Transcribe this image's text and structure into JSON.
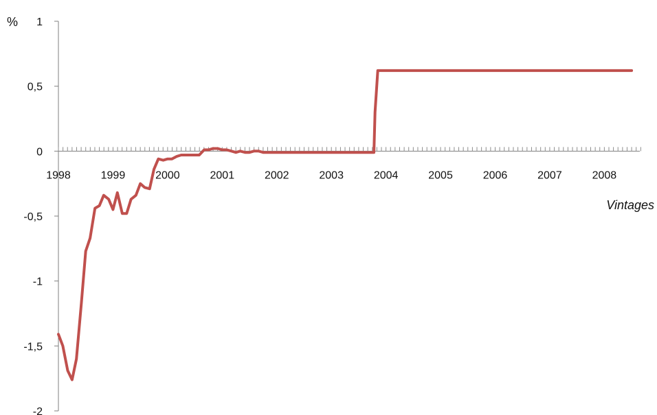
{
  "chart_data": {
    "type": "line",
    "unit_label": "%",
    "xlabel": "Vintages",
    "ylabel": "",
    "title": "",
    "x_tick_labels": [
      "1998",
      "1999",
      "2000",
      "2001",
      "2002",
      "2003",
      "2004",
      "2005",
      "2006",
      "2007",
      "2008"
    ],
    "y_tick_labels": [
      "1",
      "0,5",
      "0",
      "-0,5",
      "-1",
      "-1,5",
      "-2"
    ],
    "y_tick_values": [
      1,
      0.5,
      0,
      -0.5,
      -1,
      -1.5,
      -2
    ],
    "ylim": [
      -2,
      1
    ],
    "xlim": [
      1998.0,
      2008.65
    ],
    "grid": false,
    "legend": "none",
    "series": [
      {
        "color": "#C0504D",
        "x": [
          1998.0,
          1998.08,
          1998.17,
          1998.25,
          1998.33,
          1998.42,
          1998.5,
          1998.58,
          1998.67,
          1998.75,
          1998.83,
          1998.92,
          1999.0,
          1999.08,
          1999.17,
          1999.25,
          1999.33,
          1999.42,
          1999.5,
          1999.58,
          1999.67,
          1999.75,
          1999.83,
          1999.92,
          2000.0,
          2000.08,
          2000.17,
          2000.25,
          2000.33,
          2000.42,
          2000.5,
          2000.58,
          2000.67,
          2000.75,
          2000.83,
          2000.92,
          2001.0,
          2001.08,
          2001.17,
          2001.25,
          2001.33,
          2001.42,
          2001.5,
          2001.58,
          2001.67,
          2001.75,
          2001.83,
          2001.92,
          2002.0,
          2002.5,
          2002.67,
          2002.75,
          2003.0,
          2003.5,
          2003.78,
          2003.8,
          2003.85,
          2004.0,
          2005.0,
          2006.0,
          2007.0,
          2008.0,
          2008.5
        ],
        "y": [
          -1.41,
          -1.5,
          -1.69,
          -1.76,
          -1.6,
          -1.17,
          -0.77,
          -0.67,
          -0.44,
          -0.42,
          -0.34,
          -0.37,
          -0.45,
          -0.32,
          -0.48,
          -0.48,
          -0.37,
          -0.34,
          -0.25,
          -0.28,
          -0.29,
          -0.14,
          -0.06,
          -0.07,
          -0.06,
          -0.06,
          -0.04,
          -0.03,
          -0.03,
          -0.03,
          -0.03,
          -0.03,
          0.01,
          0.01,
          0.02,
          0.02,
          0.01,
          0.01,
          0.0,
          -0.01,
          0.0,
          -0.01,
          -0.01,
          0.0,
          0.0,
          -0.01,
          -0.01,
          -0.01,
          -0.01,
          -0.01,
          -0.01,
          -0.01,
          -0.01,
          -0.01,
          -0.01,
          0.3,
          0.62,
          0.62,
          0.62,
          0.62,
          0.62,
          0.62,
          0.62
        ]
      }
    ]
  }
}
